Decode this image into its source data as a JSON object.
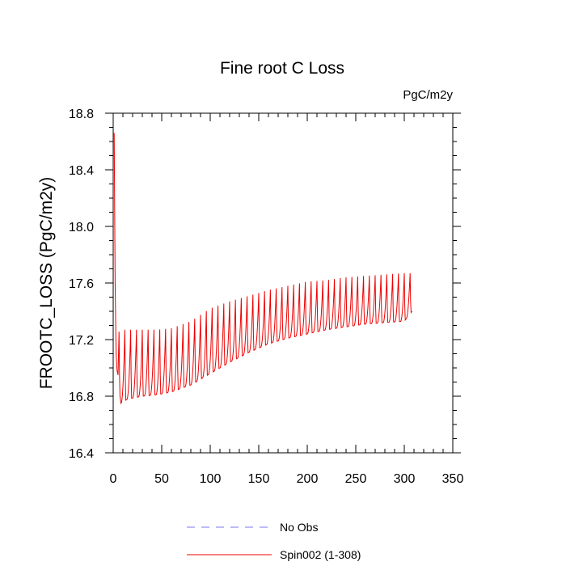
{
  "chart_data": {
    "type": "line",
    "title": "Fine root C Loss",
    "units": "PgC/m2y",
    "xlabel": "",
    "ylabel": "FROOTC_LOSS  (PgC/m2y)",
    "xlim": [
      0,
      350
    ],
    "ylim": [
      16.4,
      18.8
    ],
    "xticks": [
      0,
      50,
      100,
      150,
      200,
      250,
      300,
      350
    ],
    "xtick_labels": [
      "0",
      "50",
      "100",
      "150",
      "200",
      "250",
      "300",
      "350"
    ],
    "yticks": [
      16.4,
      16.8,
      17.2,
      17.6,
      18.0,
      18.4,
      18.8
    ],
    "ytick_labels": [
      "16.4",
      "16.8",
      "17.2",
      "17.6",
      "18.0",
      "18.4",
      "18.8"
    ],
    "grid": false,
    "legend_position": "bottom",
    "series": [
      {
        "name": "No Obs",
        "color": "#7777ee",
        "style": "dashed",
        "x": [],
        "y": []
      },
      {
        "name": "Spin002 (1-308)",
        "color": "#ee0000",
        "style": "solid",
        "spike_period": 6,
        "start": {
          "x": [
            1,
            2,
            3,
            4,
            5
          ],
          "y": [
            18.66,
            17.6,
            17.1,
            16.98,
            16.95
          ]
        },
        "envelope_x": [
          5,
          8,
          15,
          30,
          45,
          60,
          80,
          100,
          120,
          140,
          160,
          180,
          200,
          220,
          240,
          260,
          280,
          300,
          308
        ],
        "envelope_peak": [
          17.25,
          17.27,
          17.27,
          17.27,
          17.27,
          17.28,
          17.33,
          17.42,
          17.47,
          17.51,
          17.55,
          17.58,
          17.61,
          17.62,
          17.64,
          17.65,
          17.66,
          17.67,
          17.67
        ],
        "envelope_low": [
          16.9,
          16.75,
          16.78,
          16.8,
          16.81,
          16.83,
          16.88,
          16.96,
          17.04,
          17.11,
          17.17,
          17.21,
          17.24,
          17.27,
          17.29,
          17.31,
          17.32,
          17.33,
          17.4
        ]
      }
    ],
    "legend": [
      {
        "label": "No Obs",
        "color": "#7777ee",
        "style": "dashed"
      },
      {
        "label": "Spin002 (1-308)",
        "color": "#ee0000",
        "style": "solid"
      }
    ]
  }
}
